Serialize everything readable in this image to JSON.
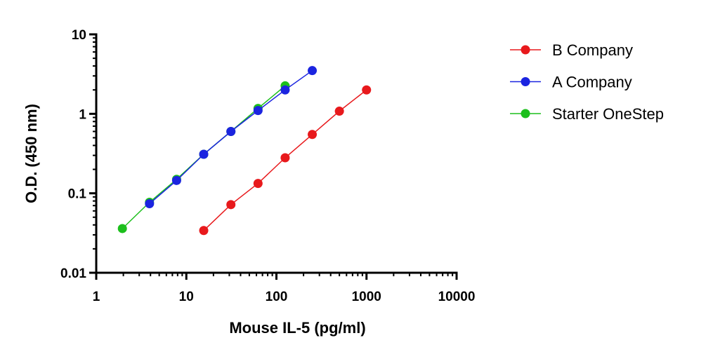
{
  "chart_data": {
    "type": "line",
    "title": "",
    "xlabel": "Mouse IL-5 (pg/ml)",
    "ylabel": "O.D. (450 nm)",
    "x_scale": "log",
    "y_scale": "log",
    "xlim": [
      1,
      10000
    ],
    "ylim": [
      0.01,
      10
    ],
    "x_ticks": [
      1,
      10,
      100,
      1000,
      10000
    ],
    "x_tick_labels": [
      "1",
      "10",
      "100",
      "1000",
      "10000"
    ],
    "y_ticks": [
      0.01,
      0.1,
      1,
      10
    ],
    "y_tick_labels": [
      "0.01",
      "0.1",
      "1",
      "10"
    ],
    "grid": false,
    "legend_position": "right",
    "series": [
      {
        "name": "B Company",
        "color": "#e8191c",
        "x": [
          15.6,
          31.25,
          62.5,
          125,
          250,
          500,
          1000
        ],
        "y": [
          0.034,
          0.072,
          0.133,
          0.28,
          0.55,
          1.08,
          2.0
        ]
      },
      {
        "name": "A Company",
        "color": "#1b24e0",
        "x": [
          3.9,
          7.8,
          15.6,
          31.25,
          62.5,
          125,
          250
        ],
        "y": [
          0.074,
          0.145,
          0.31,
          0.6,
          1.1,
          2.0,
          3.5
        ]
      },
      {
        "name": "Starter OneStep",
        "color": "#1cbf1c",
        "x": [
          1.95,
          3.9,
          7.8,
          15.6,
          31.25,
          62.5,
          125
        ],
        "y": [
          0.036,
          0.077,
          0.15,
          0.31,
          0.6,
          1.17,
          2.25
        ]
      }
    ]
  }
}
